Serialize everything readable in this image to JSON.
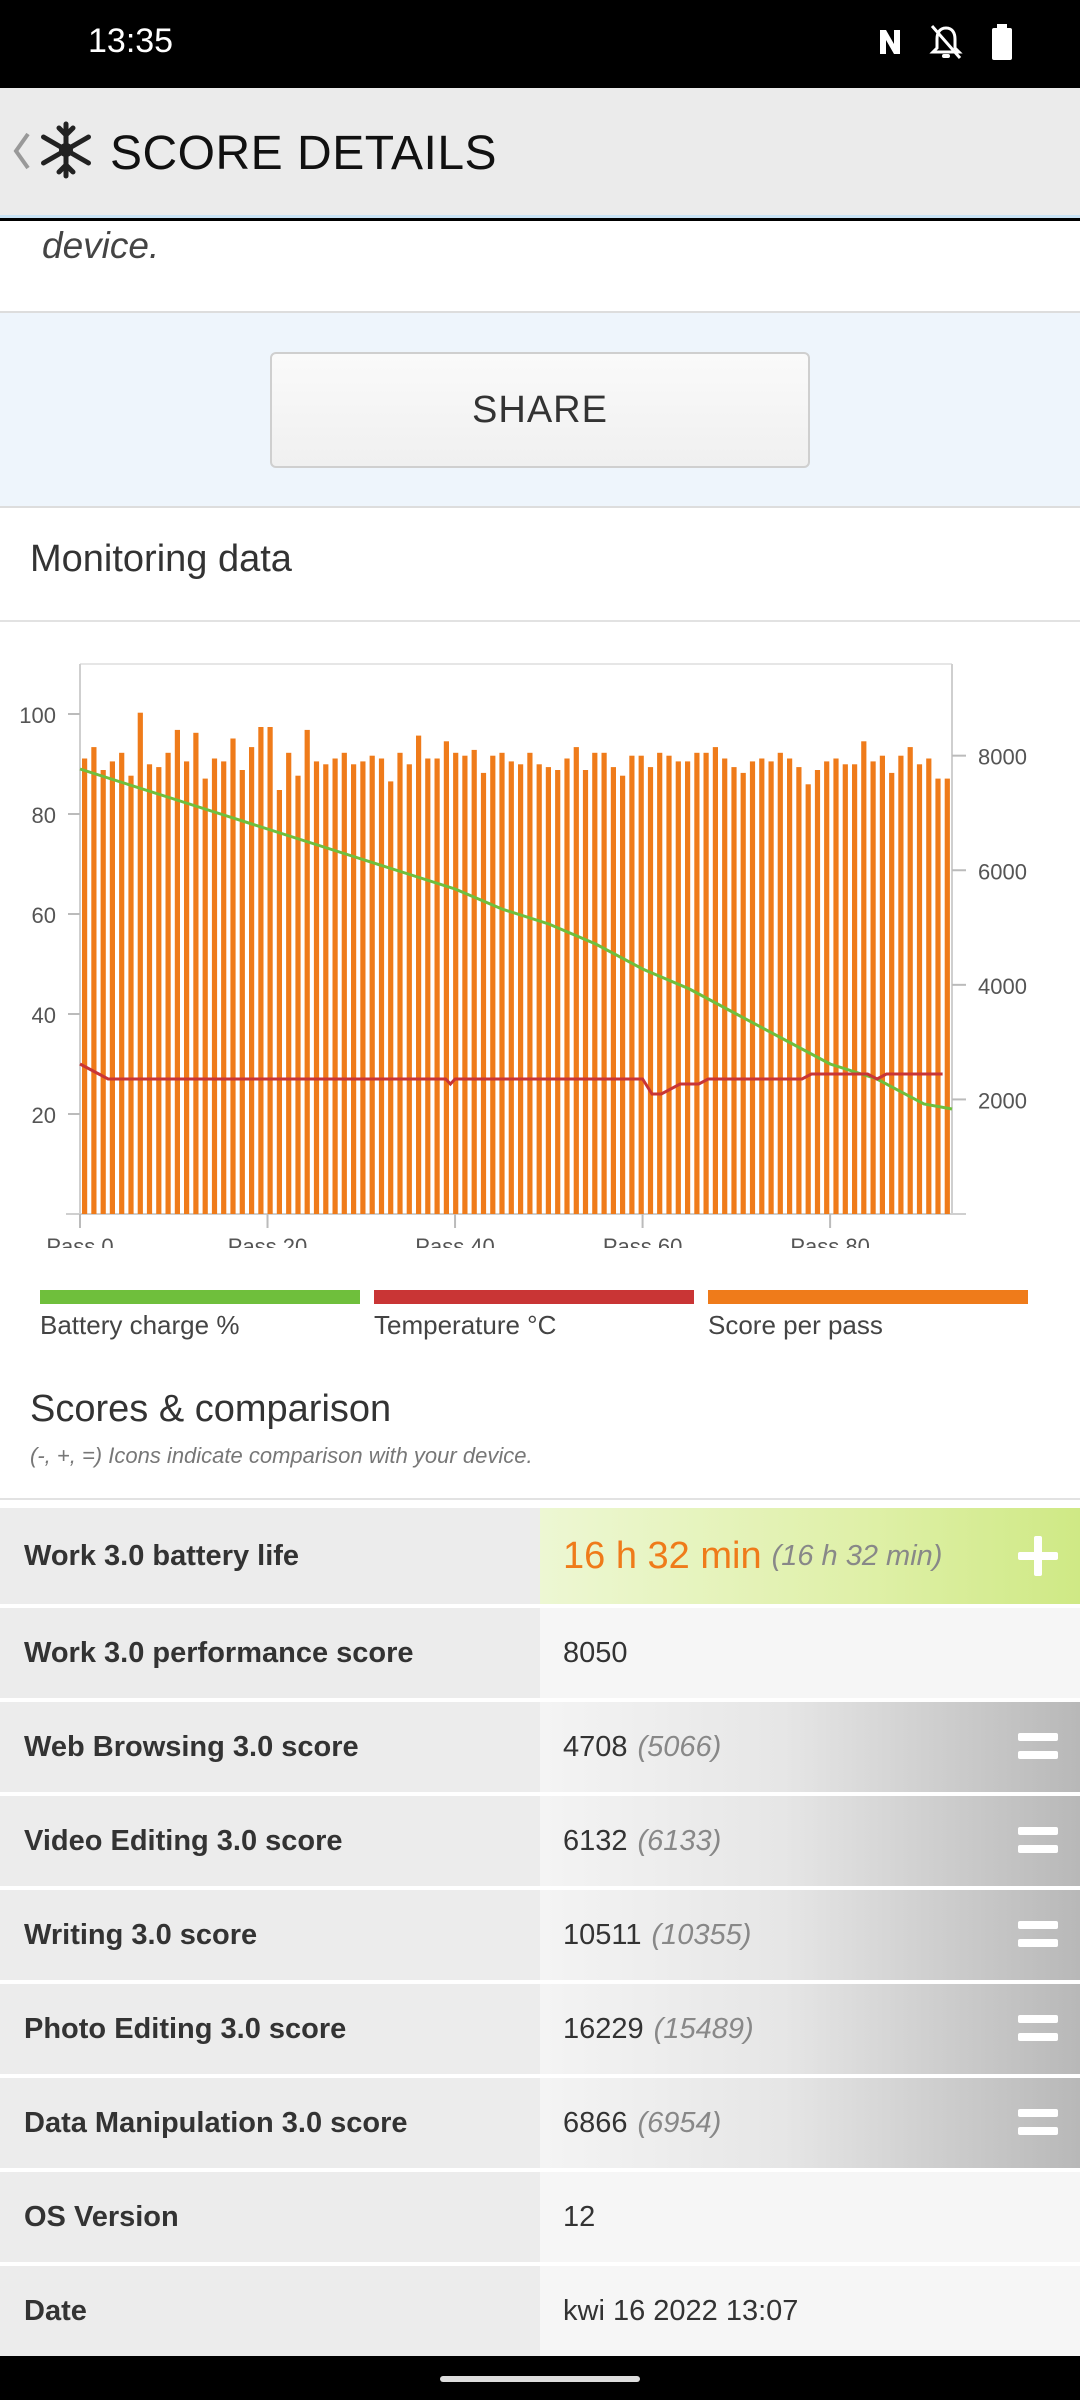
{
  "status_bar": {
    "time": "13:35",
    "icons": [
      "nfc-icon",
      "bell-off-icon",
      "battery-icon"
    ]
  },
  "app_bar": {
    "title": "SCORE DETAILS",
    "back_icon": "chevron-left-icon",
    "app_icon": "snowflake-icon"
  },
  "description": {
    "text": "device."
  },
  "share_button": {
    "label": "SHARE"
  },
  "monitoring": {
    "title": "Monitoring data",
    "legend": [
      {
        "label": "Battery charge %",
        "color": "#6fbf3c"
      },
      {
        "label": "Temperature °C",
        "color": "#c93535"
      },
      {
        "label": "Score per pass",
        "color": "#ef7b1a"
      }
    ]
  },
  "chart_data": {
    "type": "bar",
    "x_ticks": [
      "Pass 0",
      "Pass 20",
      "Pass 40",
      "Pass 60",
      "Pass 80"
    ],
    "x_tick_values": [
      0,
      20,
      40,
      60,
      80
    ],
    "x_range": [
      0,
      93
    ],
    "left_axis": {
      "ticks": [
        20,
        40,
        60,
        80,
        100
      ],
      "range": [
        0,
        110
      ]
    },
    "right_axis": {
      "ticks": [
        2000,
        4000,
        6000,
        8000
      ],
      "range": [
        0,
        9600
      ]
    },
    "series": [
      {
        "name": "Score per pass",
        "axis": "right",
        "kind": "bar",
        "values": [
          7950,
          8150,
          7750,
          7900,
          8050,
          7650,
          8750,
          7850,
          7800,
          8050,
          8450,
          7900,
          8400,
          7600,
          7950,
          7900,
          8300,
          7750,
          8150,
          8500,
          8500,
          7400,
          8050,
          7650,
          8450,
          7900,
          7850,
          7950,
          8050,
          7850,
          7900,
          8000,
          7950,
          7550,
          8050,
          7850,
          8350,
          7950,
          7950,
          8250,
          8050,
          8000,
          8100,
          7700,
          8000,
          8050,
          7900,
          7850,
          8050,
          7850,
          7800,
          7750,
          7950,
          8150,
          7750,
          8050,
          8050,
          7800,
          7650,
          8000,
          8000,
          7800,
          8050,
          8000,
          7900,
          7900,
          8050,
          8050,
          8150,
          7950,
          7800,
          7700,
          7900,
          7950,
          7900,
          8050,
          7950,
          7800,
          7500,
          7750,
          7900,
          7950,
          7850,
          7850,
          8250,
          7900,
          8000,
          7700,
          8000,
          8150,
          7850,
          7950,
          7600,
          7600
        ]
      },
      {
        "name": "Battery charge %",
        "axis": "left",
        "kind": "line",
        "points": [
          [
            0,
            89
          ],
          [
            5,
            86
          ],
          [
            10,
            83
          ],
          [
            15,
            80
          ],
          [
            20,
            77
          ],
          [
            25,
            74
          ],
          [
            30,
            71
          ],
          [
            35,
            68
          ],
          [
            40,
            65
          ],
          [
            45,
            61
          ],
          [
            50,
            58
          ],
          [
            55,
            54
          ],
          [
            60,
            49
          ],
          [
            65,
            45
          ],
          [
            70,
            40
          ],
          [
            75,
            35
          ],
          [
            80,
            30
          ],
          [
            85,
            27
          ],
          [
            90,
            22
          ],
          [
            93,
            21
          ]
        ]
      },
      {
        "name": "Temperature °C",
        "axis": "left",
        "kind": "line",
        "points": [
          [
            0,
            30
          ],
          [
            2,
            28
          ],
          [
            3,
            27
          ],
          [
            39,
            27
          ],
          [
            39.5,
            26
          ],
          [
            40,
            27
          ],
          [
            60,
            27
          ],
          [
            61,
            24
          ],
          [
            62,
            24
          ],
          [
            64,
            26
          ],
          [
            66,
            26
          ],
          [
            67,
            27
          ],
          [
            77,
            27
          ],
          [
            78,
            28
          ],
          [
            84,
            28
          ],
          [
            85,
            27
          ],
          [
            86,
            28
          ],
          [
            92,
            28
          ]
        ]
      }
    ]
  },
  "scores": {
    "title": "Scores & comparison",
    "subtitle": "(-, +, =) Icons indicate comparison with your device.",
    "rows": [
      {
        "name": "Work 3.0 battery life",
        "value": "16 h 32 min",
        "compare": "(16 h 32 min)",
        "indicator": "plus-icon"
      },
      {
        "name": "Work 3.0 performance score",
        "value": "8050",
        "compare": "",
        "indicator": ""
      },
      {
        "name": "Web Browsing 3.0 score",
        "value": "4708",
        "compare": "(5066)",
        "indicator": "equals-icon"
      },
      {
        "name": "Video Editing 3.0 score",
        "value": "6132",
        "compare": "(6133)",
        "indicator": "equals-icon"
      },
      {
        "name": "Writing 3.0 score",
        "value": "10511",
        "compare": "(10355)",
        "indicator": "equals-icon"
      },
      {
        "name": "Photo Editing 3.0 score",
        "value": "16229",
        "compare": "(15489)",
        "indicator": "equals-icon"
      },
      {
        "name": "Data Manipulation 3.0 score",
        "value": "6866",
        "compare": "(6954)",
        "indicator": "equals-icon"
      },
      {
        "name": "OS Version",
        "value": "12",
        "compare": "",
        "indicator": ""
      },
      {
        "name": "Date",
        "value": "kwi 16 2022 13:07",
        "compare": "",
        "indicator": ""
      }
    ]
  }
}
